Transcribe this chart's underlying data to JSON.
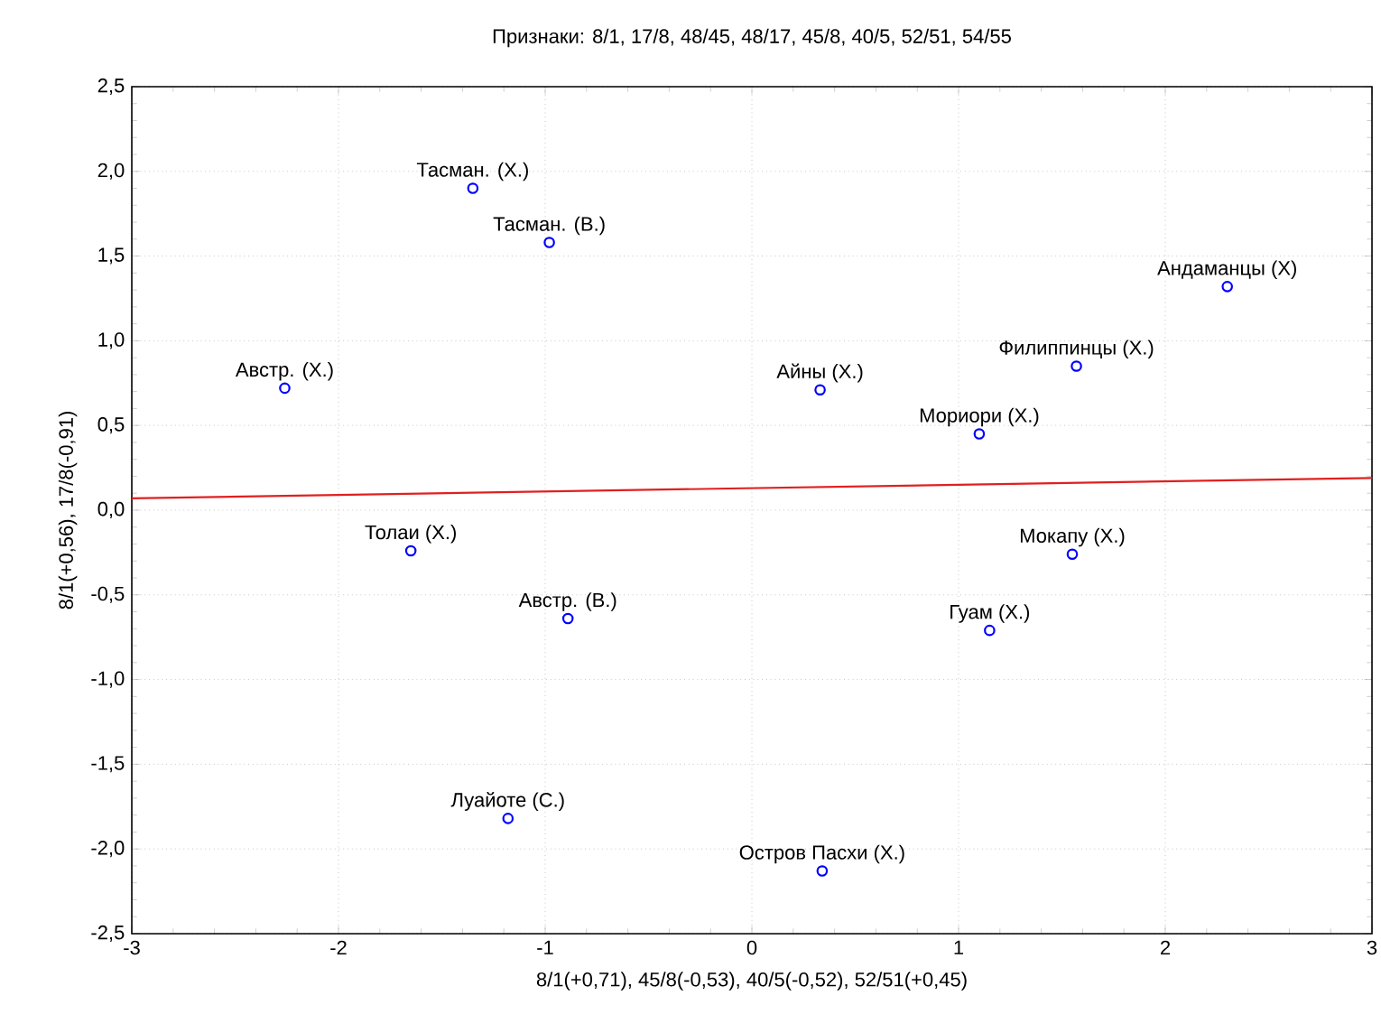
{
  "chart_data": {
    "type": "scatter",
    "title": "Признаки: 8/1, 17/8, 48/45, 48/17, 45/8, 40/5, 52/51, 54/55",
    "xlabel": "8/1(+0,71), 45/8(-0,53), 40/5(-0,52), 52/51(+0,45)",
    "ylabel": "8/1(+0,56), 17/8(-0,91)",
    "xlim": [
      -3,
      3
    ],
    "xticks": [
      -3,
      -2,
      -1,
      0,
      1,
      2,
      3
    ],
    "ylim": [
      -2.5,
      2.5
    ],
    "yticks": [
      {
        "value": -2.5,
        "label": "-2,5"
      },
      {
        "value": -2,
        "label": "-2,0"
      },
      {
        "value": -1.5,
        "label": "-1,5"
      },
      {
        "value": -1,
        "label": "-1,0"
      },
      {
        "value": -0.5,
        "label": "-0,5"
      },
      {
        "value": 0,
        "label": "0,0"
      },
      {
        "value": 0.5,
        "label": "0,5"
      },
      {
        "value": 1,
        "label": "1,0"
      },
      {
        "value": 1.5,
        "label": "1,5"
      },
      {
        "value": 2,
        "label": "2,0"
      },
      {
        "value": 2.5,
        "label": "2,5"
      }
    ],
    "grid": true,
    "series": [
      {
        "color": "#0000ff",
        "marker": "circle",
        "x": [
          -1.35,
          -0.98,
          -2.26,
          -1.65,
          -0.89,
          -1.18,
          0.33,
          1.1,
          1.57,
          2.3,
          1.55,
          1.15,
          0.34
        ],
        "values": [
          1.9,
          1.58,
          0.72,
          -0.24,
          -0.64,
          -1.82,
          0.71,
          0.45,
          0.85,
          1.32,
          -0.26,
          -0.71,
          -2.13
        ]
      },
      {
        "type": "line",
        "color": "#e02020",
        "marker": "none",
        "line_style": "solid",
        "x": [
          -3,
          3
        ],
        "values": [
          0.07,
          0.19
        ]
      }
    ],
    "annotations": [
      {
        "text": "Тасман. (Х.)",
        "x": -1.35,
        "y": 1.9
      },
      {
        "text": "Тасман. (В.)",
        "x": -0.98,
        "y": 1.58
      },
      {
        "text": "Австр. (Х.)",
        "x": -2.26,
        "y": 0.72
      },
      {
        "text": "Толаи (Х.)",
        "x": -1.65,
        "y": -0.24
      },
      {
        "text": "Австр. (В.)",
        "x": -0.89,
        "y": -0.64
      },
      {
        "text": "Луайоте (С.)",
        "x": -1.18,
        "y": -1.82
      },
      {
        "text": "Айны (Х.)",
        "x": 0.33,
        "y": 0.71
      },
      {
        "text": "Мориори (Х.)",
        "x": 1.1,
        "y": 0.45
      },
      {
        "text": "Филиппинцы (Х.)",
        "x": 1.57,
        "y": 0.85
      },
      {
        "text": "Андаманцы (Х)",
        "x": 2.3,
        "y": 1.32
      },
      {
        "text": "Мокапу (Х.)",
        "x": 1.55,
        "y": -0.26
      },
      {
        "text": "Гуам (Х.)",
        "x": 1.15,
        "y": -0.71
      },
      {
        "text": "Остров Пасхи (Х.)",
        "x": 0.34,
        "y": -2.13
      }
    ]
  }
}
